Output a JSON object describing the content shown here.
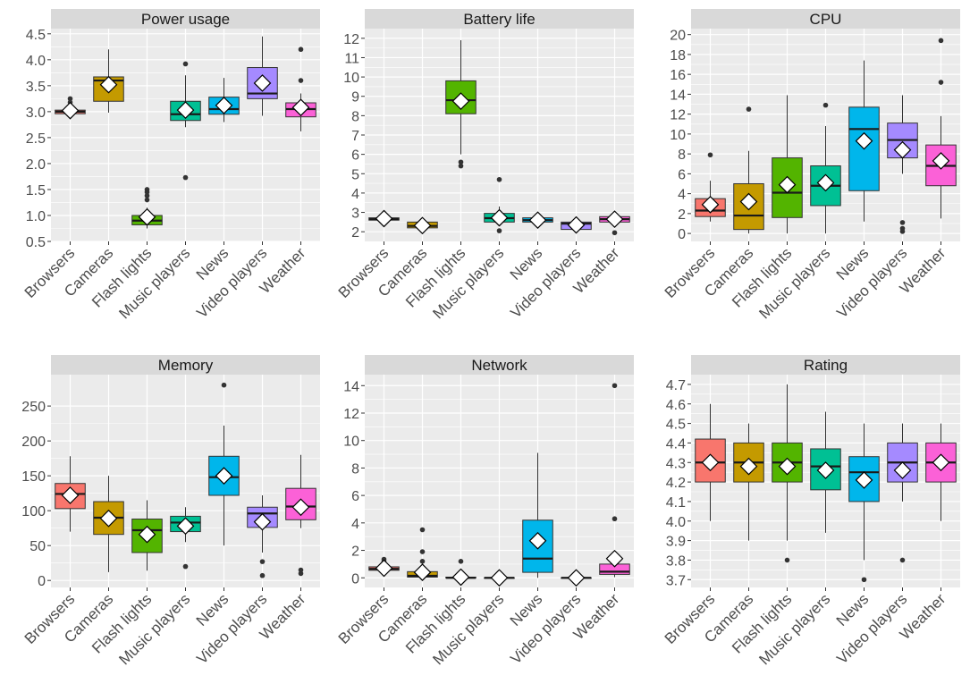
{
  "categories": [
    "Browsers",
    "Cameras",
    "Flash lights",
    "Music players",
    "News",
    "Video players",
    "Weather"
  ],
  "colors": {
    "Browsers": "#F8766D",
    "Cameras": "#C49A00",
    "Flash lights": "#53B400",
    "Music players": "#00C094",
    "News": "#00B6EB",
    "Video players": "#A58AFF",
    "Weather": "#FB61D7",
    "panel_background": "#EBEBEB",
    "strip_background": "#D9D9D9",
    "grid": "#FFFFFF",
    "axis_text": "#4D4D4D"
  },
  "chart_data": [
    {
      "type": "box",
      "title": "Power usage",
      "ylim": [
        0.5,
        4.6
      ],
      "yticks": [
        "0.5",
        "1.0",
        "1.5",
        "2.0",
        "2.5",
        "3.0",
        "3.5",
        "4.0",
        "4.5"
      ],
      "boxes": [
        {
          "category": "Browsers",
          "min": 2.95,
          "q1": 2.96,
          "median": 3.0,
          "q3": 3.03,
          "max": 3.1,
          "mean": 3.02,
          "outliers": [
            3.18,
            3.25
          ]
        },
        {
          "category": "Cameras",
          "min": 2.98,
          "q1": 3.2,
          "median": 3.6,
          "q3": 3.67,
          "max": 4.2,
          "mean": 3.52,
          "outliers": []
        },
        {
          "category": "Flash lights",
          "min": 0.75,
          "q1": 0.82,
          "median": 0.9,
          "q3": 1.0,
          "max": 1.15,
          "mean": 0.97,
          "outliers": [
            1.3,
            1.38,
            1.45,
            1.5
          ]
        },
        {
          "category": "Music players",
          "min": 2.7,
          "q1": 2.83,
          "median": 2.95,
          "q3": 3.2,
          "max": 3.7,
          "mean": 3.03,
          "outliers": [
            1.73,
            3.92
          ]
        },
        {
          "category": "News",
          "min": 2.8,
          "q1": 2.95,
          "median": 3.05,
          "q3": 3.28,
          "max": 3.65,
          "mean": 3.12,
          "outliers": []
        },
        {
          "category": "Video players",
          "min": 2.92,
          "q1": 3.25,
          "median": 3.35,
          "q3": 3.85,
          "max": 4.45,
          "mean": 3.55,
          "outliers": []
        },
        {
          "category": "Weather",
          "min": 2.62,
          "q1": 2.9,
          "median": 3.05,
          "q3": 3.17,
          "max": 3.35,
          "mean": 3.08,
          "outliers": [
            3.6,
            4.2
          ]
        }
      ]
    },
    {
      "type": "box",
      "title": "Battery life",
      "ylim": [
        1.5,
        12.5
      ],
      "yticks": [
        "2",
        "3",
        "4",
        "5",
        "6",
        "7",
        "8",
        "9",
        "10",
        "11",
        "12"
      ],
      "boxes": [
        {
          "category": "Browsers",
          "min": 2.55,
          "q1": 2.6,
          "median": 2.65,
          "q3": 2.72,
          "max": 2.8,
          "mean": 2.68,
          "outliers": []
        },
        {
          "category": "Cameras",
          "min": 2.15,
          "q1": 2.2,
          "median": 2.3,
          "q3": 2.5,
          "max": 2.55,
          "mean": 2.32,
          "outliers": []
        },
        {
          "category": "Flash lights",
          "min": 6.0,
          "q1": 8.1,
          "median": 8.8,
          "q3": 9.8,
          "max": 11.9,
          "mean": 8.75,
          "outliers": [
            5.4,
            5.6
          ]
        },
        {
          "category": "Music players",
          "min": 2.3,
          "q1": 2.5,
          "median": 2.7,
          "q3": 2.95,
          "max": 3.3,
          "mean": 2.72,
          "outliers": [
            2.05,
            4.7
          ]
        },
        {
          "category": "News",
          "min": 2.35,
          "q1": 2.5,
          "median": 2.6,
          "q3": 2.72,
          "max": 2.85,
          "mean": 2.6,
          "outliers": []
        },
        {
          "category": "Video players",
          "min": 2.05,
          "q1": 2.12,
          "median": 2.42,
          "q3": 2.5,
          "max": 2.58,
          "mean": 2.35,
          "outliers": []
        },
        {
          "category": "Weather",
          "min": 2.3,
          "q1": 2.5,
          "median": 2.65,
          "q3": 2.78,
          "max": 2.9,
          "mean": 2.65,
          "outliers": [
            1.95
          ]
        }
      ]
    },
    {
      "type": "box",
      "title": "CPU",
      "ylim": [
        -0.8,
        20.6
      ],
      "yticks": [
        "0",
        "2",
        "4",
        "6",
        "8",
        "10",
        "12",
        "14",
        "16",
        "18",
        "20"
      ],
      "boxes": [
        {
          "category": "Browsers",
          "min": 1.2,
          "q1": 1.7,
          "median": 2.3,
          "q3": 3.5,
          "max": 5.3,
          "mean": 2.9,
          "outliers": [
            7.9
          ]
        },
        {
          "category": "Cameras",
          "min": 0.0,
          "q1": 0.4,
          "median": 1.8,
          "q3": 5.0,
          "max": 8.3,
          "mean": 3.2,
          "outliers": [
            12.5
          ]
        },
        {
          "category": "Flash lights",
          "min": 0.0,
          "q1": 1.6,
          "median": 4.1,
          "q3": 7.6,
          "max": 13.9,
          "mean": 4.9,
          "outliers": []
        },
        {
          "category": "Music players",
          "min": 0.0,
          "q1": 2.8,
          "median": 4.8,
          "q3": 6.8,
          "max": 10.8,
          "mean": 5.1,
          "outliers": [
            12.9
          ]
        },
        {
          "category": "News",
          "min": 1.2,
          "q1": 4.3,
          "median": 10.5,
          "q3": 12.7,
          "max": 17.4,
          "mean": 9.3,
          "outliers": []
        },
        {
          "category": "Video players",
          "min": 6.0,
          "q1": 7.6,
          "median": 9.4,
          "q3": 11.1,
          "max": 13.9,
          "mean": 8.4,
          "outliers": [
            0.2,
            0.5,
            1.1
          ]
        },
        {
          "category": "Weather",
          "min": 1.5,
          "q1": 4.8,
          "median": 6.8,
          "q3": 8.9,
          "max": 11.8,
          "mean": 7.3,
          "outliers": [
            15.2,
            19.4
          ]
        }
      ]
    },
    {
      "type": "box",
      "title": "Memory",
      "ylim": [
        -10,
        295
      ],
      "yticks": [
        "0",
        "50",
        "100",
        "150",
        "200",
        "250"
      ],
      "boxes": [
        {
          "category": "Browsers",
          "min": 70,
          "q1": 103,
          "median": 124,
          "q3": 139,
          "max": 178,
          "mean": 122,
          "outliers": []
        },
        {
          "category": "Cameras",
          "min": 12,
          "q1": 66,
          "median": 90,
          "q3": 113,
          "max": 150,
          "mean": 89,
          "outliers": []
        },
        {
          "category": "Flash lights",
          "min": 14,
          "q1": 40,
          "median": 72,
          "q3": 88,
          "max": 115,
          "mean": 66,
          "outliers": []
        },
        {
          "category": "Music players",
          "min": 55,
          "q1": 70,
          "median": 83,
          "q3": 92,
          "max": 105,
          "mean": 78,
          "outliers": [
            20
          ]
        },
        {
          "category": "News",
          "min": 50,
          "q1": 122,
          "median": 148,
          "q3": 178,
          "max": 222,
          "mean": 150,
          "outliers": [
            280
          ]
        },
        {
          "category": "Video players",
          "min": 40,
          "q1": 76,
          "median": 96,
          "q3": 105,
          "max": 122,
          "mean": 84,
          "outliers": [
            7,
            27
          ]
        },
        {
          "category": "Weather",
          "min": 75,
          "q1": 87,
          "median": 106,
          "q3": 132,
          "max": 180,
          "mean": 105,
          "outliers": [
            10,
            15
          ]
        }
      ]
    },
    {
      "type": "box",
      "title": "Network",
      "ylim": [
        -0.7,
        14.8
      ],
      "yticks": [
        "0",
        "2",
        "4",
        "6",
        "8",
        "10",
        "12",
        "14"
      ],
      "boxes": [
        {
          "category": "Browsers",
          "min": 0.35,
          "q1": 0.55,
          "median": 0.65,
          "q3": 0.8,
          "max": 1.0,
          "mean": 0.7,
          "outliers": [
            1.2,
            1.35
          ]
        },
        {
          "category": "Cameras",
          "min": 0.0,
          "q1": 0.05,
          "median": 0.15,
          "q3": 0.45,
          "max": 0.8,
          "mean": 0.4,
          "outliers": [
            1.2,
            1.9,
            3.5
          ]
        },
        {
          "category": "Flash lights",
          "min": 0.0,
          "q1": 0.0,
          "median": 0.0,
          "q3": 0.05,
          "max": 0.1,
          "mean": 0.05,
          "outliers": [
            1.2
          ]
        },
        {
          "category": "Music players",
          "min": 0.0,
          "q1": 0.0,
          "median": 0.0,
          "q3": 0.0,
          "max": 0.0,
          "mean": 0.0,
          "outliers": []
        },
        {
          "category": "News",
          "min": 0.0,
          "q1": 0.4,
          "median": 1.4,
          "q3": 4.2,
          "max": 9.1,
          "mean": 2.7,
          "outliers": []
        },
        {
          "category": "Video players",
          "min": 0.0,
          "q1": 0.0,
          "median": 0.0,
          "q3": 0.0,
          "max": 0.0,
          "mean": 0.0,
          "outliers": []
        },
        {
          "category": "Weather",
          "min": 0.05,
          "q1": 0.25,
          "median": 0.45,
          "q3": 1.0,
          "max": 1.5,
          "mean": 1.4,
          "outliers": [
            4.3,
            14.0
          ]
        }
      ]
    },
    {
      "type": "box",
      "title": "Rating",
      "ylim": [
        3.66,
        4.75
      ],
      "yticks": [
        "3.7",
        "3.8",
        "3.9",
        "4.0",
        "4.1",
        "4.2",
        "4.3",
        "4.4",
        "4.5",
        "4.6",
        "4.7"
      ],
      "boxes": [
        {
          "category": "Browsers",
          "min": 4.0,
          "q1": 4.2,
          "median": 4.3,
          "q3": 4.42,
          "max": 4.6,
          "mean": 4.3,
          "outliers": []
        },
        {
          "category": "Cameras",
          "min": 3.9,
          "q1": 4.2,
          "median": 4.3,
          "q3": 4.4,
          "max": 4.5,
          "mean": 4.28,
          "outliers": []
        },
        {
          "category": "Flash lights",
          "min": 3.9,
          "q1": 4.2,
          "median": 4.3,
          "q3": 4.4,
          "max": 4.7,
          "mean": 4.28,
          "outliers": [
            3.8
          ]
        },
        {
          "category": "Music players",
          "min": 3.94,
          "q1": 4.16,
          "median": 4.28,
          "q3": 4.37,
          "max": 4.56,
          "mean": 4.26,
          "outliers": []
        },
        {
          "category": "News",
          "min": 3.8,
          "q1": 4.1,
          "median": 4.25,
          "q3": 4.33,
          "max": 4.5,
          "mean": 4.21,
          "outliers": [
            3.7
          ]
        },
        {
          "category": "Video players",
          "min": 4.1,
          "q1": 4.2,
          "median": 4.3,
          "q3": 4.4,
          "max": 4.5,
          "mean": 4.26,
          "outliers": [
            3.8
          ]
        },
        {
          "category": "Weather",
          "min": 4.0,
          "q1": 4.2,
          "median": 4.3,
          "q3": 4.4,
          "max": 4.5,
          "mean": 4.3,
          "outliers": []
        }
      ]
    }
  ]
}
